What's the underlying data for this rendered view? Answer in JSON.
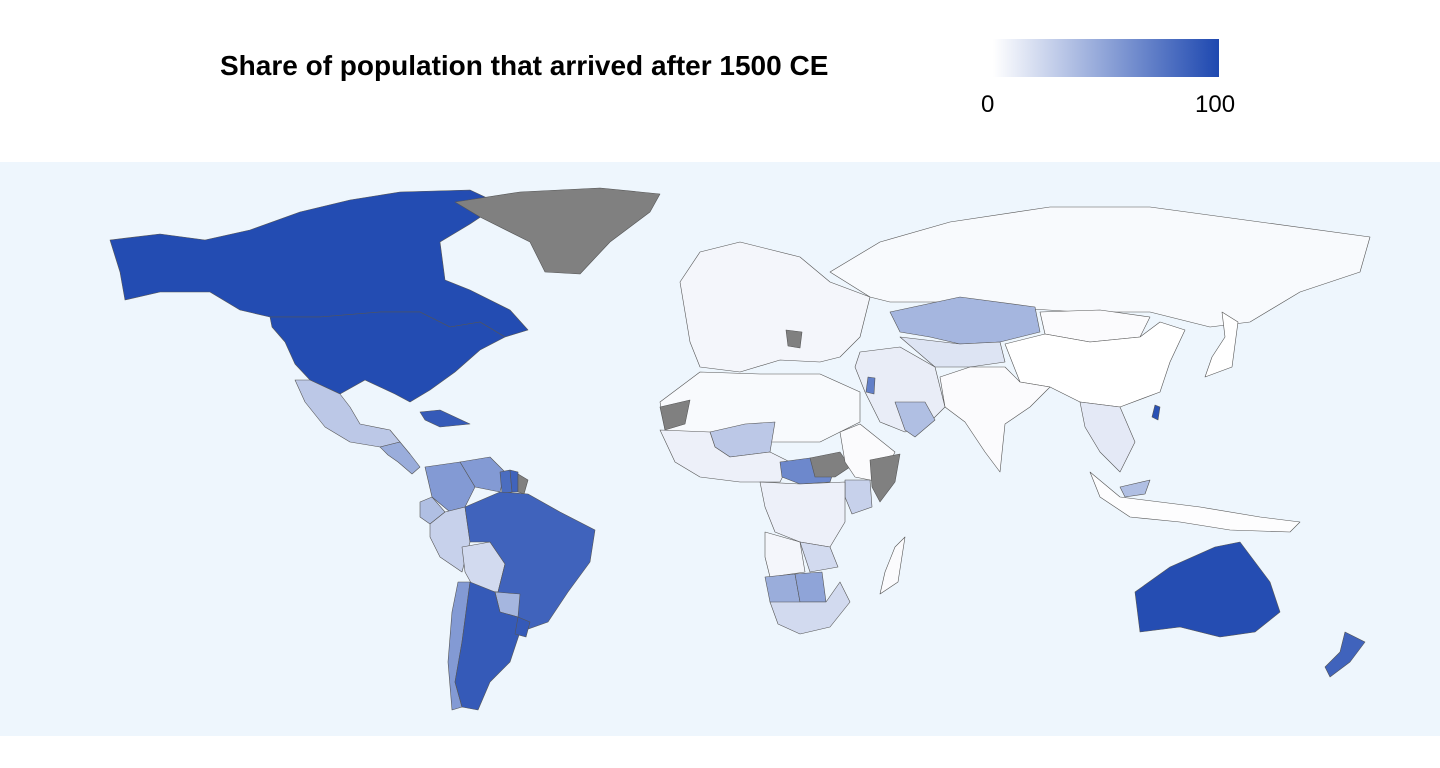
{
  "title": "Share of population that arrived after 1500 CE",
  "legend": {
    "min_label": "0",
    "max_label": "100",
    "min_value": 0,
    "max_value": 100,
    "color_low": "#ffffff",
    "color_high": "#1e48b0",
    "no_data_color": "#808080"
  },
  "colors": {
    "ocean": "#eef6fd",
    "border": "#555555"
  },
  "map_data": {
    "type": "choropleth",
    "metric": "Share of population that arrived after 1500 CE",
    "regions": [
      {
        "name": "Canada",
        "value": 98
      },
      {
        "name": "United States",
        "value": 98
      },
      {
        "name": "Greenland",
        "value": null
      },
      {
        "name": "Mexico",
        "value": 30
      },
      {
        "name": "Central America",
        "value": 45
      },
      {
        "name": "Caribbean",
        "value": 90
      },
      {
        "name": "Venezuela",
        "value": 55
      },
      {
        "name": "Colombia",
        "value": 55
      },
      {
        "name": "Guyana",
        "value": 80
      },
      {
        "name": "Suriname",
        "value": 85
      },
      {
        "name": "French Guiana",
        "value": null
      },
      {
        "name": "Ecuador",
        "value": 35
      },
      {
        "name": "Peru",
        "value": 25
      },
      {
        "name": "Bolivia",
        "value": 20
      },
      {
        "name": "Brazil",
        "value": 85
      },
      {
        "name": "Paraguay",
        "value": 40
      },
      {
        "name": "Chile",
        "value": 55
      },
      {
        "name": "Argentina",
        "value": 90
      },
      {
        "name": "Uruguay",
        "value": 90
      },
      {
        "name": "Europe",
        "value": 5
      },
      {
        "name": "Serbia",
        "value": null
      },
      {
        "name": "Russia",
        "value": 3
      },
      {
        "name": "Kazakhstan",
        "value": 40
      },
      {
        "name": "Central Asia",
        "value": 15
      },
      {
        "name": "China",
        "value": 0
      },
      {
        "name": "Mongolia",
        "value": 2
      },
      {
        "name": "South Asia",
        "value": 2
      },
      {
        "name": "Middle East",
        "value": 10
      },
      {
        "name": "Israel",
        "value": 70
      },
      {
        "name": "Gulf States",
        "value": 35
      },
      {
        "name": "Southeast Asia",
        "value": 12
      },
      {
        "name": "Malaysia",
        "value": 35
      },
      {
        "name": "Taiwan",
        "value": 95
      },
      {
        "name": "North Africa",
        "value": 3
      },
      {
        "name": "Western Sahara",
        "value": null
      },
      {
        "name": "West Africa",
        "value": 8
      },
      {
        "name": "Mali",
        "value": 30
      },
      {
        "name": "Central African Republic",
        "value": 65
      },
      {
        "name": "South Sudan",
        "value": null
      },
      {
        "name": "Somalia",
        "value": null
      },
      {
        "name": "Horn of Africa",
        "value": 2
      },
      {
        "name": "Kenya",
        "value": 25
      },
      {
        "name": "Congo Basin",
        "value": 8
      },
      {
        "name": "Angola",
        "value": 5
      },
      {
        "name": "Zambia",
        "value": 20
      },
      {
        "name": "Namibia",
        "value": 45
      },
      {
        "name": "Botswana",
        "value": 50
      },
      {
        "name": "South Africa",
        "value": 20
      },
      {
        "name": "Madagascar",
        "value": 2
      },
      {
        "name": "Australia",
        "value": 97
      },
      {
        "name": "New Zealand",
        "value": 85
      },
      {
        "name": "Japan",
        "value": 0
      },
      {
        "name": "Indonesia",
        "value": 1
      }
    ]
  }
}
